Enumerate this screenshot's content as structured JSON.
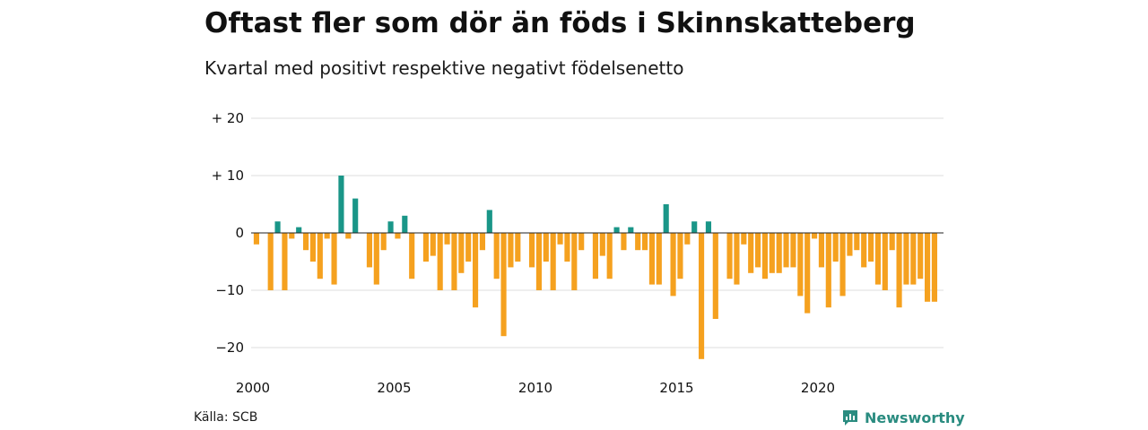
{
  "title": "Oftast fler som dör än föds i Skinnskatteberg",
  "subtitle": "Kvartal med positivt respektive negativt födelsenetto",
  "source": "Källa: SCB",
  "brand": "Newsworthy",
  "colors": {
    "positive": "#1a9688",
    "negative": "#f5a11f",
    "grid": "#dddddd",
    "zero": "#222222",
    "brand": "#2a8c80"
  },
  "chart_data": {
    "type": "bar",
    "ylim": [
      -23,
      20
    ],
    "y_ticks": [
      20,
      10,
      0,
      -10,
      -20
    ],
    "y_tick_labels": [
      "+ 20",
      "+ 10",
      "0",
      "−10",
      "−20"
    ],
    "x_ticks": [
      2000,
      2005,
      2010,
      2015,
      2020
    ],
    "x_tick_labels": [
      "2000",
      "2005",
      "2010",
      "2015",
      "2020"
    ],
    "start_year": 2000,
    "quarters_per_year": 4,
    "values": [
      -2,
      0,
      -10,
      2,
      -10,
      -1,
      1,
      -3,
      -5,
      -8,
      -1,
      -9,
      10,
      -1,
      6,
      0,
      -6,
      -9,
      -3,
      2,
      -1,
      3,
      -8,
      0,
      -5,
      -4,
      -10,
      -2,
      -10,
      -7,
      -5,
      -13,
      -3,
      4,
      -8,
      -18,
      -6,
      -5,
      0,
      -6,
      -10,
      -5,
      -10,
      -2,
      -5,
      -10,
      -3,
      0,
      -8,
      -4,
      -8,
      1,
      -3,
      1,
      -3,
      -3,
      -9,
      -9,
      5,
      -11,
      -8,
      -2,
      2,
      -22,
      2,
      -15,
      0,
      -8,
      -9,
      -2,
      -7,
      -6,
      -8,
      -7,
      -7,
      -6,
      -6,
      -11,
      -14,
      -1,
      -6,
      -13,
      -5,
      -11,
      -4,
      -3,
      -6,
      -5,
      -9,
      -10,
      -3,
      -13,
      -9,
      -9,
      -8,
      -12,
      -12
    ]
  }
}
